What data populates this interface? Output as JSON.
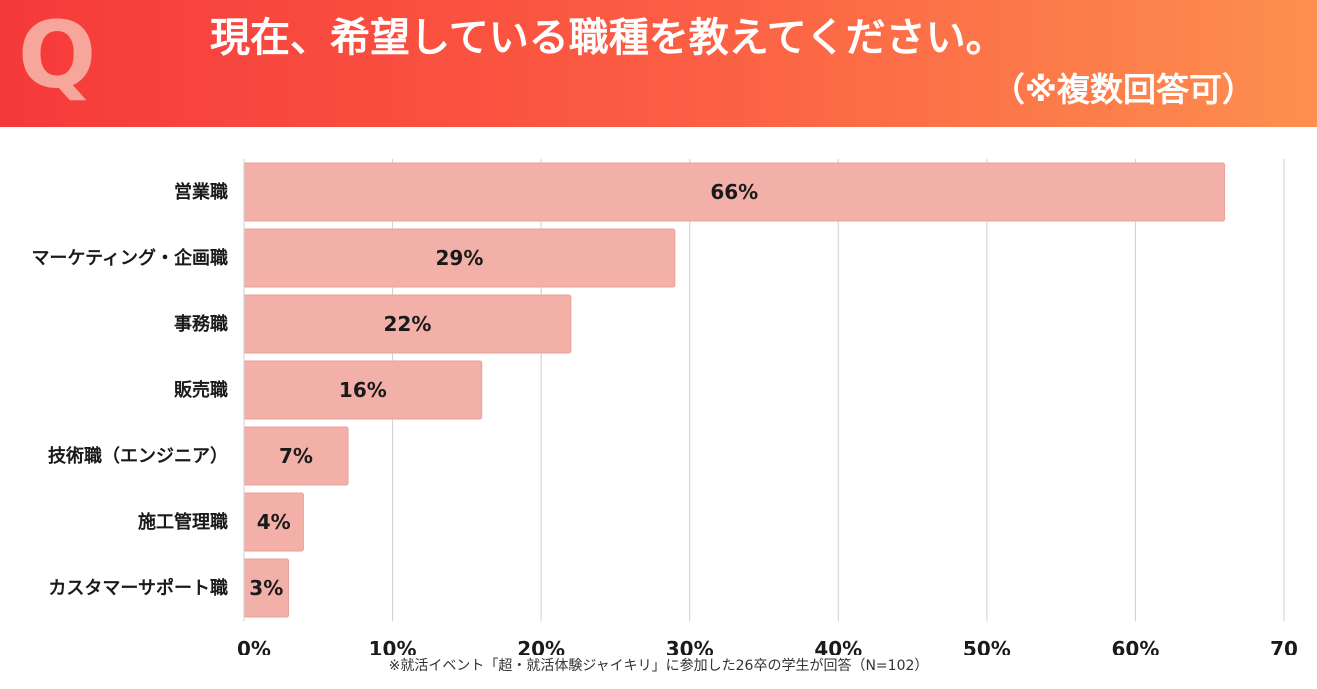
{
  "header": {
    "q_mark": "Q",
    "title": "現在、希望している職種を教えてください。",
    "subtitle": "（※複数回答可）"
  },
  "colors": {
    "bar": "#f2b0a8",
    "bar_stroke": "#e9a29a",
    "grid": "#cfcfcf",
    "header_start": "#f53a3a",
    "header_end": "#fd8f4f"
  },
  "chart_data": {
    "type": "bar",
    "orientation": "horizontal",
    "categories": [
      "営業職",
      "マーケティング・企画職",
      "事務職",
      "販売職",
      "技術職（エンジニア）",
      "施工管理職",
      "カスタマーサポート職"
    ],
    "values": [
      66,
      29,
      22,
      16,
      7,
      4,
      3
    ],
    "value_labels": [
      "66%",
      "29%",
      "22%",
      "16%",
      "7%",
      "4%",
      "3%"
    ],
    "x_ticks": [
      "0%",
      "10%",
      "20%",
      "30%",
      "40%",
      "50%",
      "60%",
      "70"
    ],
    "xlim": [
      0,
      70
    ],
    "grid": true
  },
  "footnote": "※就活イベント「超・就活体験ジャイキリ」に参加した26卒の学生が回答（N=102）"
}
